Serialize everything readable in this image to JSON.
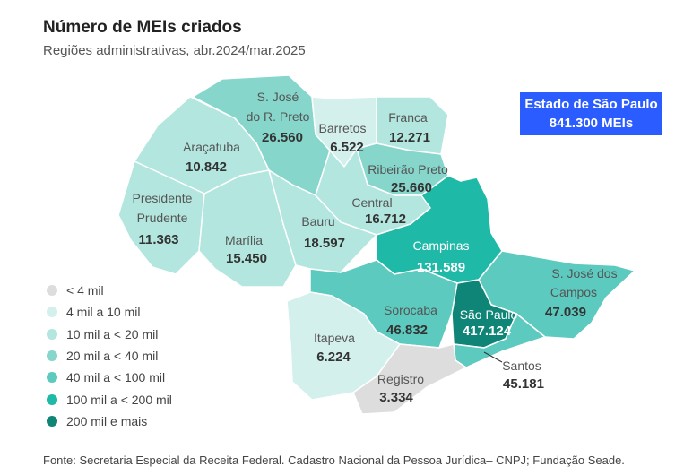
{
  "header": {
    "title": "Número de MEIs criados",
    "subtitle": "Regiões administrativas, abr.2024/mar.2025"
  },
  "state_total": {
    "label": "Estado de São Paulo",
    "value": "841.300 MEIs"
  },
  "legend": [
    {
      "label": "< 4 mil",
      "color": "#dddddd"
    },
    {
      "label": "4 mil a 10 mil",
      "color": "#d4f0ec"
    },
    {
      "label": "10 mil a < 20 mil",
      "color": "#b2e6df"
    },
    {
      "label": "20 mil a < 40 mil",
      "color": "#86d6cc"
    },
    {
      "label": "40 mil a < 100 mil",
      "color": "#5ccabe"
    },
    {
      "label": "100 mil a < 200 mil",
      "color": "#1fb9a8"
    },
    {
      "label": "200 mil e mais",
      "color": "#0f8577"
    }
  ],
  "regions": {
    "sjrp": {
      "name1": "S. José",
      "name2": "do R. Preto",
      "value": "26.560",
      "color": "#86d6cc"
    },
    "barretos": {
      "name1": "Barretos",
      "value": "6.522",
      "color": "#d4f0ec"
    },
    "franca": {
      "name1": "Franca",
      "value": "12.271",
      "color": "#b2e6df"
    },
    "aracatuba": {
      "name1": "Araçatuba",
      "value": "10.842",
      "color": "#b2e6df"
    },
    "ribeirao": {
      "name1": "Ribeirão Preto",
      "value": "25.660",
      "color": "#86d6cc"
    },
    "presidente": {
      "name1": "Presidente",
      "name2": "Prudente",
      "value": "11.363",
      "color": "#b2e6df"
    },
    "central": {
      "name1": "Central",
      "value": "16.712",
      "color": "#b2e6df"
    },
    "bauru": {
      "name1": "Bauru",
      "value": "18.597",
      "color": "#b2e6df"
    },
    "marilia": {
      "name1": "Marília",
      "value": "15.450",
      "color": "#b2e6df"
    },
    "campinas": {
      "name1": "Campinas",
      "value": "131.589",
      "color": "#1fb9a8"
    },
    "sjcampos": {
      "name1": "S. José dos",
      "name2": "Campos",
      "value": "47.039",
      "color": "#5ccabe"
    },
    "sorocaba": {
      "name1": "Sorocaba",
      "value": "46.832",
      "color": "#5ccabe"
    },
    "saopaulo": {
      "name1": "São Paulo",
      "value": "417.124",
      "color": "#0f8577"
    },
    "itapeva": {
      "name1": "Itapeva",
      "value": "6.224",
      "color": "#d4f0ec"
    },
    "santos": {
      "name1": "Santos",
      "value": "45.181",
      "color": "#5ccabe"
    },
    "registro": {
      "name1": "Registro",
      "value": "3.334",
      "color": "#dddddd"
    }
  },
  "footer": {
    "source": "Fonte: Secretaria Especial da Receita Federal. Cadastro Nacional da Pessoa Jurídica– CNPJ; Fundação Seade."
  }
}
